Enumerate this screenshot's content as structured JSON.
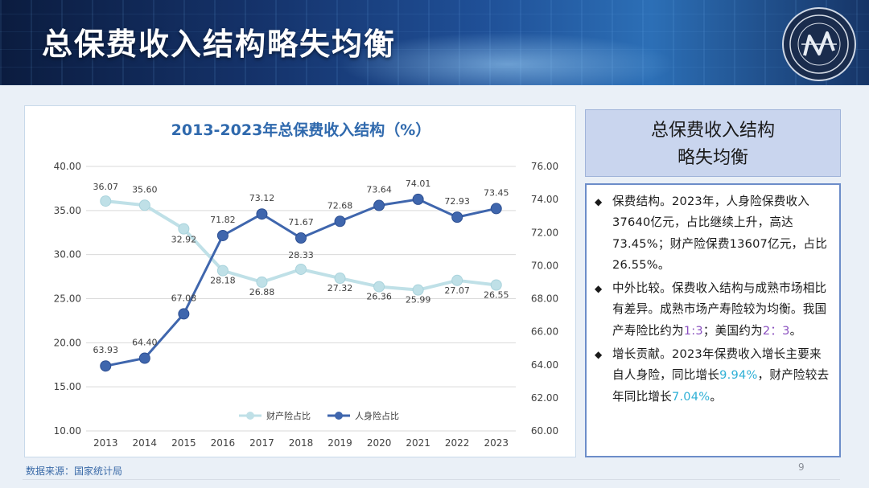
{
  "header": {
    "title": "总保费收入结构略失均衡"
  },
  "chart_data": {
    "type": "line",
    "title": "2013-2023年总保费收入结构（%）",
    "categories": [
      "2013",
      "2014",
      "2015",
      "2016",
      "2017",
      "2018",
      "2019",
      "2020",
      "2021",
      "2022",
      "2023"
    ],
    "y_left": {
      "min": 10,
      "max": 40,
      "ticks": [
        "10.00",
        "15.00",
        "20.00",
        "25.00",
        "30.00",
        "35.00",
        "40.00"
      ]
    },
    "y_right": {
      "min": 60,
      "max": 76,
      "ticks": [
        "60.00",
        "62.00",
        "64.00",
        "66.00",
        "68.00",
        "70.00",
        "72.00",
        "74.00",
        "76.00"
      ]
    },
    "series": [
      {
        "name": "财产险占比",
        "axis": "left",
        "color": "#bfe0e7",
        "values": [
          36.07,
          35.6,
          32.92,
          28.18,
          26.88,
          28.33,
          27.32,
          26.36,
          25.99,
          27.07,
          26.55
        ],
        "labels": [
          "36.07",
          "35.60",
          "32.92",
          "28.18",
          "26.88",
          "28.33",
          "27.32",
          "26.36",
          "25.99",
          "27.07",
          "26.55"
        ]
      },
      {
        "name": "人身险占比",
        "axis": "right",
        "color": "#3f66ad",
        "values": [
          63.93,
          64.4,
          67.08,
          71.82,
          73.12,
          71.67,
          72.68,
          73.64,
          74.01,
          72.93,
          73.45
        ],
        "labels": [
          "63.93",
          "64.40",
          "67.08",
          "71.82",
          "73.12",
          "71.67",
          "72.68",
          "73.64",
          "74.01",
          "72.93",
          "73.45"
        ]
      }
    ],
    "grid": true,
    "legend": "bottom"
  },
  "source": "数据来源：国家统计局",
  "page_number": "9",
  "sidebar": {
    "heading_line1": "总保费收入结构",
    "heading_line2": "略失均衡",
    "items": [
      {
        "text": "保费结构。2023年，人身险保费收入37640亿元，占比继续上升，高达73.45%；财产险保费13607亿元，占比26.55%。"
      },
      {
        "text_before": "中外比较。保费收入结构与成熟市场相比有差异。成熟市场产寿险较为均衡。我国产寿险比约为",
        "hl1": "1:3",
        "text_mid": "；美国约为",
        "hl2": "2：3",
        "text_after": "。"
      },
      {
        "text_before": "增长贡献。2023年保费收入增长主要来自人身险，同比增长",
        "hl1": "9.94%",
        "text_mid": "，财产险较去年同比增长",
        "hl2": "7.04%",
        "text_after": "。"
      }
    ]
  }
}
